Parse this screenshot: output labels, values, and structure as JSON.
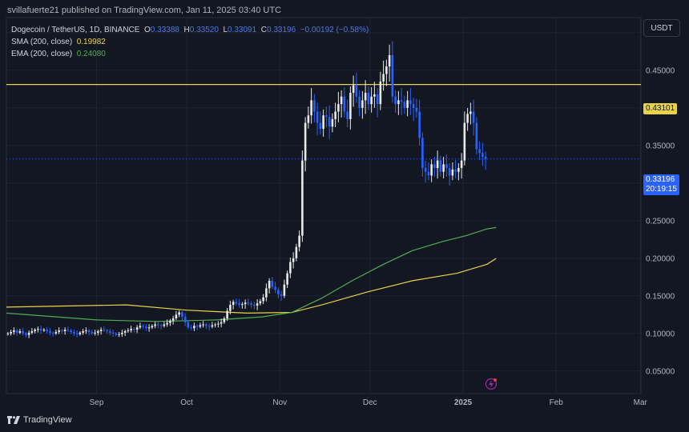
{
  "header": {
    "credit": "svillafuerte21 published on TradingView.com, Jan 11, 2025 03:40 UTC"
  },
  "legend": {
    "symbol": "Dogecoin / TetherUS, 1D, BINANCE",
    "o_label": "O",
    "o_val": "0.33388",
    "h_label": "H",
    "h_val": "0.33520",
    "l_label": "L",
    "l_val": "0.33091",
    "c_label": "C",
    "c_val": "0.33196",
    "change": "−0.00192 (−0.58%)",
    "sma_label": "SMA (200, close)",
    "sma_val": "0.19982",
    "ema_label": "EMA (200, close)",
    "ema_val": "0.24080"
  },
  "currency": "USDT",
  "price_tags": {
    "resistance": "0.43101",
    "last": "0.33196",
    "countdown": "20:19:15"
  },
  "footer": {
    "brand": "TradingView"
  },
  "colors": {
    "background": "#131722",
    "grid": "#1f2332",
    "up": "#e8e8e8",
    "down": "#2962ff",
    "sma": "#e8d24a",
    "ema": "#4caf50",
    "resistance": "#e8d24a"
  },
  "chart_data": {
    "type": "candlestick",
    "ylim": [
      0.02,
      0.52
    ],
    "yticks": [
      "0.05000",
      "0.10000",
      "0.15000",
      "0.20000",
      "0.25000",
      "0.30000",
      "0.35000",
      "0.40000",
      "0.45000",
      "0.50000"
    ],
    "ytick_values": [
      0.05,
      0.1,
      0.15,
      0.2,
      0.25,
      0.3,
      0.35,
      0.4,
      0.45,
      0.5
    ],
    "xticks": [
      "Sep",
      "Oct",
      "Nov",
      "Dec",
      "2025",
      "Feb",
      "Mar"
    ],
    "xtick_days": [
      30,
      60,
      91,
      121,
      152,
      183,
      211
    ],
    "resistance_level": 0.43101,
    "last_price": 0.33196,
    "candles_ohlc_by_day_from_aug1": "generated",
    "sma200": [
      [
        0,
        0.135
      ],
      [
        40,
        0.138
      ],
      [
        60,
        0.131
      ],
      [
        80,
        0.127
      ],
      [
        95,
        0.128
      ],
      [
        105,
        0.138
      ],
      [
        120,
        0.155
      ],
      [
        135,
        0.17
      ],
      [
        150,
        0.18
      ],
      [
        160,
        0.192
      ],
      [
        163,
        0.1998
      ]
    ],
    "ema200": [
      [
        0,
        0.127
      ],
      [
        30,
        0.118
      ],
      [
        50,
        0.116
      ],
      [
        70,
        0.118
      ],
      [
        85,
        0.122
      ],
      [
        95,
        0.128
      ],
      [
        105,
        0.147
      ],
      [
        115,
        0.17
      ],
      [
        125,
        0.191
      ],
      [
        135,
        0.21
      ],
      [
        145,
        0.222
      ],
      [
        153,
        0.23
      ],
      [
        160,
        0.239
      ],
      [
        163,
        0.2408
      ]
    ],
    "closes": [
      0.1,
      0.102,
      0.104,
      0.101,
      0.103,
      0.1,
      0.098,
      0.101,
      0.103,
      0.105,
      0.106,
      0.104,
      0.105,
      0.103,
      0.101,
      0.1,
      0.102,
      0.104,
      0.103,
      0.105,
      0.104,
      0.102,
      0.1,
      0.099,
      0.101,
      0.103,
      0.104,
      0.102,
      0.1,
      0.101,
      0.103,
      0.105,
      0.104,
      0.103,
      0.101,
      0.1,
      0.098,
      0.099,
      0.101,
      0.103,
      0.104,
      0.106,
      0.105,
      0.108,
      0.11,
      0.109,
      0.107,
      0.108,
      0.11,
      0.112,
      0.111,
      0.11,
      0.112,
      0.114,
      0.117,
      0.12,
      0.125,
      0.128,
      0.122,
      0.115,
      0.108,
      0.107,
      0.11,
      0.109,
      0.111,
      0.112,
      0.11,
      0.109,
      0.111,
      0.112,
      0.113,
      0.115,
      0.12,
      0.13,
      0.138,
      0.142,
      0.14,
      0.138,
      0.139,
      0.141,
      0.14,
      0.138,
      0.137,
      0.14,
      0.143,
      0.148,
      0.16,
      0.17,
      0.162,
      0.158,
      0.152,
      0.15,
      0.165,
      0.18,
      0.195,
      0.2,
      0.215,
      0.23,
      0.33,
      0.38,
      0.39,
      0.41,
      0.395,
      0.38,
      0.372,
      0.39,
      0.388,
      0.375,
      0.385,
      0.395,
      0.405,
      0.415,
      0.395,
      0.385,
      0.42,
      0.43,
      0.415,
      0.4,
      0.41,
      0.42,
      0.405,
      0.415,
      0.418,
      0.405,
      0.435,
      0.445,
      0.455,
      0.47,
      0.415,
      0.405,
      0.41,
      0.408,
      0.4,
      0.41,
      0.405,
      0.4,
      0.395,
      0.36,
      0.32,
      0.315,
      0.31,
      0.325,
      0.32,
      0.33,
      0.315,
      0.325,
      0.32,
      0.31,
      0.318,
      0.315,
      0.32,
      0.33,
      0.38,
      0.392,
      0.395,
      0.38,
      0.345,
      0.34,
      0.335,
      0.332
    ]
  }
}
